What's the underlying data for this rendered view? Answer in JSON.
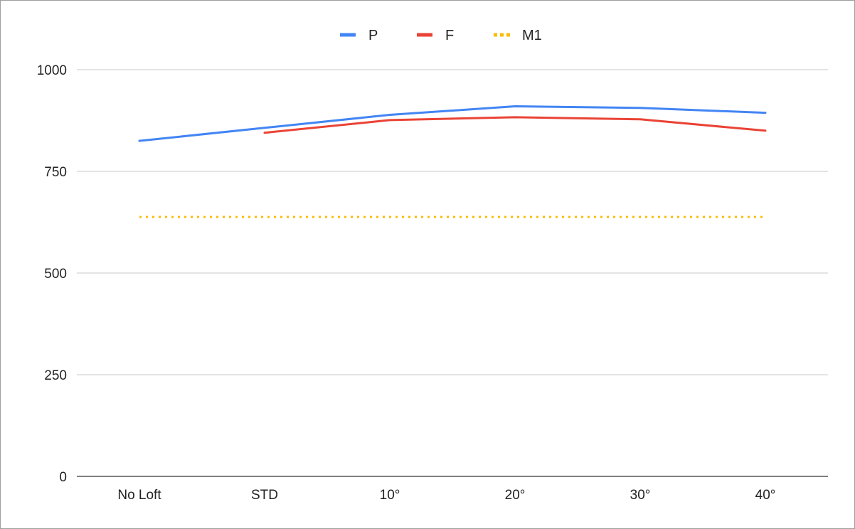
{
  "chart_data": {
    "type": "line",
    "title": "",
    "xlabel": "",
    "ylabel": "",
    "categories": [
      "No Loft",
      "STD",
      "10°",
      "20°",
      "30°",
      "40°"
    ],
    "ylim": [
      0,
      1000
    ],
    "yticks": [
      "0",
      "250",
      "500",
      "750",
      "1000"
    ],
    "grid": true,
    "legend_position": "top-center",
    "series": [
      {
        "name": "P",
        "color": "#4285f4",
        "style": "solid",
        "values": [
          825,
          857,
          889,
          910,
          906,
          894
        ]
      },
      {
        "name": "F",
        "color": "#ea4335",
        "style": "solid",
        "values": [
          null,
          845,
          876,
          883,
          878,
          850
        ]
      },
      {
        "name": "M1",
        "color": "#fbbc04",
        "style": "dotted",
        "values": [
          638,
          638,
          638,
          638,
          638,
          638
        ]
      }
    ]
  }
}
